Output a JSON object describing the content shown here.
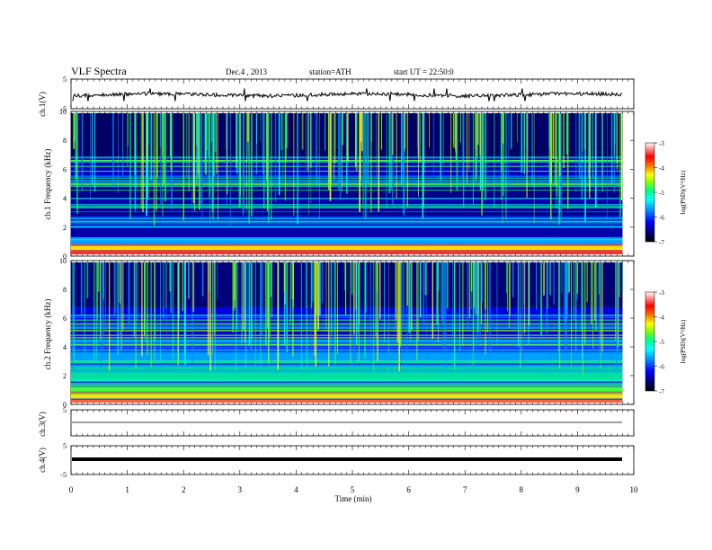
{
  "header": {
    "title": "VLF Spectra",
    "date": "Dec.4 , 2013",
    "station": "station=ATH",
    "start": "start UT = 22:50:0"
  },
  "colors": {
    "colormap": [
      "#000000",
      "#000066",
      "#0000ff",
      "#0090ff",
      "#00ffff",
      "#00ff80",
      "#80ff00",
      "#ffff00",
      "#ff8000",
      "#ff0000",
      "#ffffff"
    ]
  },
  "chart_data": [
    {
      "type": "line",
      "name": "ch1-waveform",
      "ylabel": "ch.1(V)",
      "ylim": [
        -5,
        5
      ],
      "yticks": [
        "5",
        "-5"
      ],
      "x_range": [
        0,
        9.8
      ],
      "description_of_series": "noisy signal near 0 V"
    },
    {
      "type": "heatmap",
      "name": "ch1-spectrogram",
      "ylabel": "ch.1 Frequency (kHz)",
      "ylim": [
        0,
        10
      ],
      "yticks": [
        "0",
        "2",
        "4",
        "6",
        "8",
        "10"
      ],
      "x_range": [
        0,
        9.8
      ],
      "colorbar": {
        "label": "log(PSD)(V²/Hz)",
        "ticks": [
          "-3",
          "-4",
          "-5",
          "-6",
          "-7"
        ],
        "range": [
          -7,
          -3
        ]
      }
    },
    {
      "type": "heatmap",
      "name": "ch2-spectrogram",
      "ylabel": "ch.2 Frequency (kHz)",
      "ylim": [
        0,
        10
      ],
      "yticks": [
        "0",
        "2",
        "4",
        "6",
        "8",
        "10"
      ],
      "x_range": [
        0,
        9.8
      ],
      "colorbar": {
        "label": "log(PSD)(V²/Hz)",
        "ticks": [
          "-3",
          "-4",
          "-5",
          "-6",
          "-7"
        ],
        "range": [
          -7,
          -3
        ]
      }
    },
    {
      "type": "line",
      "name": "ch3-waveform",
      "ylabel": "ch.3(V)",
      "ylim": [
        -5,
        5
      ],
      "yticks": [
        "5"
      ],
      "x_range": [
        0,
        9.8
      ]
    },
    {
      "type": "line",
      "name": "ch4-waveform",
      "ylabel": "ch.4(V)",
      "ylim": [
        -5,
        5
      ],
      "yticks": [
        "5",
        "-5"
      ],
      "x_range": [
        0,
        9.8
      ]
    }
  ],
  "xaxis": {
    "label": "Time (min)",
    "range": [
      0,
      10
    ],
    "ticks": [
      "0",
      "1",
      "2",
      "3",
      "4",
      "5",
      "6",
      "7",
      "8",
      "9",
      "10"
    ]
  }
}
